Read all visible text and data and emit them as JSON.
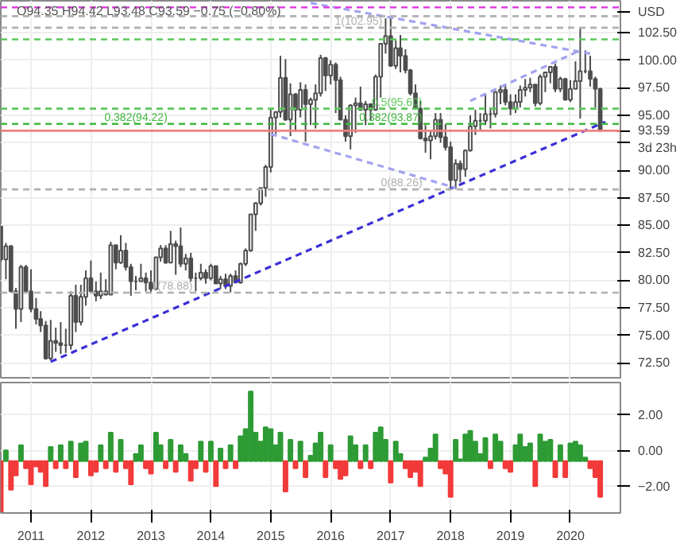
{
  "chart_data": [
    {
      "type": "candlestick",
      "color": "#4d4d4d",
      "ylabel": "USD",
      "tick_labels": "y",
      "grid": true,
      "x": [
        "2010-07",
        "2010-08",
        "2010-09",
        "2010-10",
        "2010-11",
        "2010-12",
        "2011-01",
        "2011-02",
        "2011-03",
        "2011-04",
        "2011-05",
        "2011-06",
        "2011-07",
        "2011-08",
        "2011-09",
        "2011-10",
        "2011-11",
        "2011-12",
        "2012-01",
        "2012-02",
        "2012-03",
        "2012-04",
        "2012-05",
        "2012-06",
        "2012-07",
        "2012-08",
        "2012-09",
        "2012-10",
        "2012-11",
        "2012-12",
        "2013-01",
        "2013-02",
        "2013-03",
        "2013-04",
        "2013-05",
        "2013-06",
        "2013-07",
        "2013-08",
        "2013-09",
        "2013-10",
        "2013-11",
        "2013-12",
        "2014-01",
        "2014-02",
        "2014-03",
        "2014-04",
        "2014-05",
        "2014-06",
        "2014-07",
        "2014-08",
        "2014-09",
        "2014-10",
        "2014-11",
        "2014-12",
        "2015-01",
        "2015-02",
        "2015-03",
        "2015-04",
        "2015-05",
        "2015-06",
        "2015-07",
        "2015-08",
        "2015-09",
        "2015-10",
        "2015-11",
        "2015-12",
        "2016-01",
        "2016-02",
        "2016-03",
        "2016-04",
        "2016-05",
        "2016-06",
        "2016-07",
        "2016-08",
        "2016-09",
        "2016-10",
        "2016-11",
        "2016-12",
        "2017-01",
        "2017-02",
        "2017-03",
        "2017-04",
        "2017-05",
        "2017-06",
        "2017-07",
        "2017-08",
        "2017-09",
        "2017-10",
        "2017-11",
        "2017-12",
        "2018-01",
        "2018-02",
        "2018-03",
        "2018-04",
        "2018-05",
        "2018-06",
        "2018-07",
        "2018-08",
        "2018-09",
        "2018-10",
        "2018-11",
        "2018-12",
        "2019-01",
        "2019-02",
        "2019-03",
        "2019-04",
        "2019-05",
        "2019-06",
        "2019-07",
        "2019-08",
        "2019-09",
        "2019-10",
        "2019-11",
        "2019-12",
        "2020-01",
        "2020-02",
        "2020-03",
        "2020-04",
        "2020-05",
        "2020-06",
        "2020-07"
      ],
      "ohlc": [
        [
          84.9,
          84.9,
          81.7,
          81.9
        ],
        [
          81.9,
          83.4,
          80.1,
          83.1
        ],
        [
          83.1,
          83.2,
          78.9,
          79.0
        ],
        [
          79.0,
          79.3,
          75.6,
          77.4
        ],
        [
          77.4,
          81.4,
          76.2,
          81.2
        ],
        [
          81.2,
          81.4,
          78.9,
          79.0
        ],
        [
          79.0,
          81.0,
          77.1,
          77.4
        ],
        [
          77.4,
          78.4,
          76.0,
          76.5
        ],
        [
          76.5,
          77.2,
          75.3,
          75.9
        ],
        [
          75.9,
          76.3,
          72.8,
          72.9
        ],
        [
          72.9,
          76.4,
          72.7,
          74.5
        ],
        [
          74.5,
          75.7,
          73.5,
          74.3
        ],
        [
          74.3,
          76.2,
          73.3,
          74.1
        ],
        [
          74.1,
          75.6,
          73.4,
          74.1
        ],
        [
          74.1,
          79.0,
          73.7,
          78.6
        ],
        [
          78.6,
          79.6,
          75.3,
          76.2
        ],
        [
          76.2,
          79.6,
          75.9,
          78.5
        ],
        [
          78.5,
          80.9,
          77.7,
          80.2
        ],
        [
          80.2,
          81.8,
          78.9,
          79.0
        ],
        [
          79.0,
          79.9,
          78.1,
          78.6
        ],
        [
          78.6,
          80.7,
          78.3,
          79.0
        ],
        [
          79.0,
          80.1,
          78.7,
          78.7
        ],
        [
          78.7,
          83.5,
          78.7,
          83.2
        ],
        [
          83.2,
          83.2,
          81.0,
          81.6
        ],
        [
          81.6,
          84.1,
          81.5,
          82.7
        ],
        [
          82.7,
          83.4,
          80.9,
          81.2
        ],
        [
          81.2,
          81.5,
          78.6,
          79.9
        ],
        [
          79.9,
          80.4,
          79.1,
          79.9
        ],
        [
          79.9,
          81.5,
          79.9,
          80.2
        ],
        [
          80.2,
          80.7,
          79.0,
          79.8
        ],
        [
          79.8,
          80.9,
          78.9,
          79.2
        ],
        [
          79.2,
          82.1,
          79.1,
          82.1
        ],
        [
          82.1,
          83.2,
          81.7,
          82.9
        ],
        [
          82.9,
          83.2,
          81.5,
          81.6
        ],
        [
          81.6,
          84.5,
          81.6,
          83.3
        ],
        [
          83.3,
          83.6,
          80.5,
          83.1
        ],
        [
          83.1,
          84.8,
          81.2,
          81.5
        ],
        [
          81.5,
          82.4,
          80.9,
          82.0
        ],
        [
          82.0,
          82.5,
          79.9,
          80.2
        ],
        [
          80.2,
          80.7,
          79.0,
          80.2
        ],
        [
          80.2,
          81.5,
          80.0,
          80.7
        ],
        [
          80.7,
          81.0,
          79.7,
          80.2
        ],
        [
          80.2,
          81.5,
          80.0,
          81.3
        ],
        [
          81.3,
          81.3,
          79.7,
          79.7
        ],
        [
          79.7,
          80.4,
          79.2,
          80.1
        ],
        [
          80.1,
          80.6,
          79.2,
          79.5
        ],
        [
          79.5,
          80.6,
          78.9,
          80.4
        ],
        [
          80.4,
          80.9,
          79.8,
          79.8
        ],
        [
          79.8,
          81.6,
          79.7,
          81.5
        ],
        [
          81.5,
          82.9,
          81.3,
          82.7
        ],
        [
          82.7,
          86.0,
          82.6,
          86.0
        ],
        [
          86.0,
          87.1,
          84.5,
          87.0
        ],
        [
          87.0,
          88.4,
          86.8,
          88.4
        ],
        [
          88.4,
          90.5,
          87.6,
          90.3
        ],
        [
          90.3,
          95.5,
          89.8,
          94.8
        ],
        [
          94.8,
          95.3,
          93.3,
          95.3
        ],
        [
          95.3,
          100.4,
          94.8,
          98.4
        ],
        [
          98.4,
          100.1,
          94.5,
          94.6
        ],
        [
          94.6,
          97.9,
          93.1,
          96.9
        ],
        [
          96.9,
          97.0,
          93.5,
          95.5
        ],
        [
          95.5,
          98.0,
          94.8,
          97.3
        ],
        [
          97.3,
          97.8,
          92.6,
          96.0
        ],
        [
          96.0,
          96.6,
          94.1,
          96.4
        ],
        [
          96.4,
          97.8,
          93.8,
          97.0
        ],
        [
          97.0,
          100.5,
          96.7,
          100.2
        ],
        [
          100.2,
          100.3,
          97.2,
          98.6
        ],
        [
          98.6,
          100.0,
          97.8,
          99.6
        ],
        [
          99.6,
          99.8,
          95.2,
          98.2
        ],
        [
          98.2,
          98.5,
          94.6,
          94.6
        ],
        [
          94.6,
          95.0,
          92.6,
          93.1
        ],
        [
          93.1,
          96.0,
          91.9,
          95.9
        ],
        [
          95.9,
          96.6,
          93.4,
          96.1
        ],
        [
          96.1,
          97.6,
          95.4,
          95.5
        ],
        [
          95.5,
          96.3,
          94.1,
          96.0
        ],
        [
          96.0,
          96.0,
          94.5,
          95.5
        ],
        [
          95.5,
          98.7,
          95.4,
          98.5
        ],
        [
          98.5,
          101.5,
          96.6,
          101.5
        ],
        [
          101.5,
          103.8,
          100.6,
          102.2
        ],
        [
          102.2,
          103.8,
          99.4,
          99.5
        ],
        [
          99.5,
          101.8,
          99.2,
          101.1
        ],
        [
          101.1,
          102.3,
          98.9,
          100.4
        ],
        [
          100.4,
          101.0,
          98.8,
          99.1
        ],
        [
          99.1,
          99.2,
          96.8,
          97.0
        ],
        [
          97.0,
          97.8,
          95.5,
          95.6
        ],
        [
          95.6,
          96.3,
          92.8,
          92.9
        ],
        [
          92.9,
          94.1,
          91.6,
          92.7
        ],
        [
          92.7,
          93.6,
          91.0,
          93.1
        ],
        [
          93.1,
          95.2,
          92.8,
          94.6
        ],
        [
          94.6,
          95.2,
          92.5,
          93.0
        ],
        [
          93.0,
          94.2,
          91.8,
          92.1
        ],
        [
          92.1,
          92.6,
          88.4,
          89.1
        ],
        [
          89.1,
          91.0,
          88.3,
          90.6
        ],
        [
          90.6,
          90.9,
          88.9,
          90.1
        ],
        [
          90.1,
          91.9,
          89.4,
          91.8
        ],
        [
          91.8,
          95.0,
          91.7,
          94.0
        ],
        [
          94.0,
          95.5,
          93.2,
          94.5
        ],
        [
          94.5,
          95.2,
          93.7,
          94.5
        ],
        [
          94.5,
          96.9,
          94.1,
          95.1
        ],
        [
          95.1,
          95.7,
          93.8,
          95.1
        ],
        [
          95.1,
          97.2,
          94.8,
          97.1
        ],
        [
          97.1,
          97.7,
          96.0,
          97.3
        ],
        [
          97.3,
          97.7,
          95.9,
          96.2
        ],
        [
          96.2,
          96.9,
          95.0,
          95.6
        ],
        [
          95.6,
          96.9,
          95.2,
          96.2
        ],
        [
          96.2,
          97.7,
          95.7,
          97.3
        ],
        [
          97.3,
          98.3,
          96.7,
          97.5
        ],
        [
          97.5,
          98.4,
          97.1,
          97.8
        ],
        [
          97.8,
          97.8,
          95.8,
          96.1
        ],
        [
          96.1,
          98.7,
          95.9,
          98.5
        ],
        [
          98.5,
          98.9,
          97.1,
          98.9
        ],
        [
          98.9,
          99.4,
          97.9,
          99.4
        ],
        [
          99.4,
          99.7,
          97.1,
          97.4
        ],
        [
          97.4,
          98.5,
          97.1,
          98.3
        ],
        [
          98.3,
          98.4,
          96.4,
          96.4
        ],
        [
          96.4,
          98.2,
          96.2,
          97.4
        ],
        [
          97.4,
          99.9,
          97.4,
          98.1
        ],
        [
          98.1,
          103.0,
          94.7,
          99.0
        ],
        [
          99.0,
          100.9,
          98.8,
          99.0
        ],
        [
          99.0,
          100.4,
          97.6,
          98.3
        ],
        [
          98.3,
          98.5,
          95.7,
          97.4
        ],
        [
          97.4,
          97.5,
          93.5,
          93.6
        ]
      ],
      "xlim": [
        "2010-07",
        "2020-11"
      ],
      "xticks": [
        "2011",
        "2012",
        "2013",
        "2014",
        "2015",
        "2016",
        "2017",
        "2018",
        "2019",
        "2020"
      ],
      "ylim": [
        71.0,
        105.4
      ],
      "yticks": [
        {
          "value": 72.5,
          "label": "72.50"
        },
        {
          "value": 75,
          "label": "75.00"
        },
        {
          "value": 77.5,
          "label": "77.50"
        },
        {
          "value": 80,
          "label": "80.00"
        },
        {
          "value": 82.5,
          "label": "82.50"
        },
        {
          "value": 85,
          "label": "85.00"
        },
        {
          "value": 87.5,
          "label": "87.50"
        },
        {
          "value": 90,
          "label": "90.00"
        },
        {
          "value": 92.5,
          "label": null
        },
        {
          "value": 95,
          "label": "95.00"
        },
        {
          "value": 97.5,
          "label": "97.50"
        },
        {
          "value": 100,
          "label": "100.00"
        },
        {
          "value": 102.5,
          "label": "102.50"
        }
      ],
      "series": [
        {
          "type": "line",
          "color": "#3b2fd6",
          "line_style": "dashed",
          "x": [
            "2011-05",
            "2020-08"
          ],
          "values": [
            72.6,
            94.4
          ]
        },
        {
          "type": "line",
          "color": "#a3a3f0",
          "line_style": "dashed",
          "x": [
            "2015-01",
            "2018-02"
          ],
          "values": [
            93.3,
            88.4
          ]
        },
        {
          "type": "line",
          "color": "#a3a3f0",
          "line_style": "dashed",
          "x": [
            "2015-09",
            "2020-05"
          ],
          "values": [
            105.2,
            100.6
          ]
        },
        {
          "type": "line",
          "color": "#a3a3f0",
          "line_style": "dashed",
          "x": [
            "2018-05",
            "2020-03"
          ],
          "values": [
            96.3,
            100.9
          ]
        }
      ],
      "ref_lines": [
        {
          "axis": "y",
          "value": 104.8,
          "color": "#e040e0",
          "line_style": "dashed"
        },
        {
          "axis": "y",
          "value": 104.0,
          "color": "#b0b0b0",
          "line_style": "dashed"
        },
        {
          "axis": "y",
          "value": 102.95,
          "color": "#b0b0b0",
          "line_style": "dashed"
        },
        {
          "axis": "y",
          "value": 101.9,
          "color": "#5cc85c",
          "line_style": "dashed"
        },
        {
          "axis": "y",
          "value": 95.6,
          "color": "#5cc85c",
          "line_style": "dashed"
        },
        {
          "axis": "y",
          "value": 94.22,
          "color": "#3fb83f",
          "line_style": "dashed"
        },
        {
          "axis": "y",
          "value": 93.59,
          "color": "#f08080",
          "line_style": "solid",
          "label": "93.59"
        },
        {
          "axis": "y",
          "value": 88.26,
          "color": "#b0b0b0",
          "line_style": "dashed"
        },
        {
          "axis": "y",
          "value": 78.88,
          "color": "#b0b0b0",
          "line_style": "dashed"
        }
      ],
      "annotations": [
        "O94.35 H94.42 L93.48 C93.59 −0.75 (−0.80%)",
        "3d 23h",
        {
          "text": "1(102.95)",
          "x": "2016-12",
          "y": 102.95
        },
        {
          "text": "0.5(95.60)",
          "x": "2017-08",
          "y": 95.6
        },
        {
          "text": "0.382(94.22)",
          "x": "2013-05",
          "y": 94.22
        },
        {
          "text": "0.382(93.87)",
          "x": "2017-08",
          "y": 94.22
        },
        {
          "text": "0(88.26)",
          "x": "2017-08",
          "y": 88.26
        },
        {
          "text": "1(78.88)",
          "x": "2013-10",
          "y": 78.88
        }
      ]
    },
    {
      "type": "bar",
      "grid": true,
      "x": [
        "2010-07",
        "2010-08",
        "2010-09",
        "2010-10",
        "2010-11",
        "2010-12",
        "2011-01",
        "2011-02",
        "2011-03",
        "2011-04",
        "2011-05",
        "2011-06",
        "2011-07",
        "2011-08",
        "2011-09",
        "2011-10",
        "2011-11",
        "2011-12",
        "2012-01",
        "2012-02",
        "2012-03",
        "2012-04",
        "2012-05",
        "2012-06",
        "2012-07",
        "2012-08",
        "2012-09",
        "2012-10",
        "2012-11",
        "2012-12",
        "2013-01",
        "2013-02",
        "2013-03",
        "2013-04",
        "2013-05",
        "2013-06",
        "2013-07",
        "2013-08",
        "2013-09",
        "2013-10",
        "2013-11",
        "2013-12",
        "2014-01",
        "2014-02",
        "2014-03",
        "2014-04",
        "2014-05",
        "2014-06",
        "2014-07",
        "2014-08",
        "2014-09",
        "2014-10",
        "2014-11",
        "2014-12",
        "2015-01",
        "2015-02",
        "2015-03",
        "2015-04",
        "2015-05",
        "2015-06",
        "2015-07",
        "2015-08",
        "2015-09",
        "2015-10",
        "2015-11",
        "2015-12",
        "2016-01",
        "2016-02",
        "2016-03",
        "2016-04",
        "2016-05",
        "2016-06",
        "2016-07",
        "2016-08",
        "2016-09",
        "2016-10",
        "2016-11",
        "2016-12",
        "2017-01",
        "2017-02",
        "2017-03",
        "2017-04",
        "2017-05",
        "2017-06",
        "2017-07",
        "2017-08",
        "2017-09",
        "2017-10",
        "2017-11",
        "2017-12",
        "2018-01",
        "2018-02",
        "2018-03",
        "2018-04",
        "2018-05",
        "2018-06",
        "2018-07",
        "2018-08",
        "2018-09",
        "2018-10",
        "2018-11",
        "2018-12",
        "2019-01",
        "2019-02",
        "2019-03",
        "2019-04",
        "2019-05",
        "2019-06",
        "2019-07",
        "2019-08",
        "2019-09",
        "2019-10",
        "2019-11",
        "2019-12",
        "2020-01",
        "2020-02",
        "2020-03",
        "2020-04",
        "2020-05",
        "2020-06",
        "2020-07"
      ],
      "values": [
        -2.9,
        0.6,
        -1.6,
        -0.8,
        0.9,
        -0.4,
        -1.3,
        -0.3,
        -0.6,
        -1.4,
        0.8,
        -0.4,
        0.9,
        -0.4,
        1.1,
        -0.9,
        1.0,
        1.1,
        -0.8,
        -0.6,
        0.9,
        -0.4,
        1.6,
        -0.6,
        1.2,
        -0.4,
        -1.3,
        0.4,
        0.9,
        -0.4,
        -0.7,
        1.6,
        0.9,
        -0.4,
        1.2,
        -0.6,
        0.9,
        0.4,
        -1.1,
        -0.4,
        1.1,
        -0.6,
        1.1,
        -1.4,
        0.7,
        -0.4,
        0.9,
        -0.4,
        1.4,
        1.8,
        3.9,
        1.6,
        1.1,
        1.9,
        1.8,
        0.9,
        1.6,
        -1.7,
        1.2,
        -0.4,
        1.1,
        -0.9,
        0.3,
        1.0,
        1.6,
        -0.9,
        0.9,
        -0.4,
        -1.0,
        -0.8,
        1.4,
        0.9,
        -0.4,
        0.9,
        -0.4,
        1.6,
        1.9,
        1.2,
        -1.2,
        1.1,
        0.4,
        -0.4,
        -0.9,
        -0.6,
        -1.4,
        0.2,
        0.7,
        1.5,
        -0.4,
        -0.7,
        -2.0,
        1.2,
        0.1,
        1.5,
        1.7,
        1.1,
        0.4,
        1.3,
        -0.4,
        1.5,
        1.1,
        -0.4,
        -0.6,
        0.9,
        1.5,
        0.8,
        1.0,
        -1.4,
        1.5,
        1.1,
        1.2,
        -0.9,
        0.9,
        -0.9,
        1.0,
        1.1,
        0.9,
        0.2,
        -0.4,
        -0.9,
        -2.0
      ],
      "base": [
        -0.6,
        -0.6,
        -0.6,
        -0.6,
        -0.6,
        -0.6,
        -0.6,
        -0.6,
        -0.6,
        -0.6,
        -0.6,
        -0.6,
        -0.6,
        -0.6,
        -0.6,
        -0.6,
        -0.6,
        -0.6,
        -0.6,
        -0.6,
        -0.6,
        -0.6,
        -0.6,
        -0.6,
        -0.6,
        -0.6,
        -0.6,
        -0.6,
        -0.6,
        -0.6,
        -0.6,
        -0.6,
        -0.6,
        -0.6,
        -0.6,
        -0.6,
        -0.6,
        -0.6,
        -0.6,
        -0.6,
        -0.6,
        -0.6,
        -0.6,
        -0.6,
        -0.6,
        -0.6,
        -0.6,
        -0.6,
        -0.6,
        -0.6,
        -0.6,
        -0.6,
        -0.6,
        -0.6,
        -0.6,
        -0.6,
        -0.6,
        -0.6,
        -0.6,
        -0.6,
        -0.6,
        -0.6,
        -0.6,
        -0.6,
        -0.6,
        -0.6,
        -0.6,
        -0.6,
        -0.6,
        -0.6,
        -0.6,
        -0.6,
        -0.6,
        -0.6,
        -0.6,
        -0.6,
        -0.6,
        -0.6,
        -0.6,
        -0.6,
        -0.6,
        -0.6,
        -0.6,
        -0.6,
        -0.6,
        -0.6,
        -0.6,
        -0.6,
        -0.6,
        -0.6,
        -0.6,
        -0.6,
        -0.6,
        -0.6,
        -0.6,
        -0.6,
        -0.6,
        -0.6,
        -0.6,
        -0.6,
        -0.6,
        -0.6,
        -0.6,
        -0.6,
        -0.6,
        -0.6,
        -0.6,
        -0.6,
        -0.6,
        -0.6,
        -0.6,
        -0.6,
        -0.6,
        -0.6,
        -0.6,
        -0.6,
        -0.6,
        -0.6,
        -0.6,
        -0.6,
        -0.6
      ],
      "colors": [
        "#f23a3a",
        "#2e9b35",
        "#f23a3a",
        "#f23a3a",
        "#2e9b35",
        "#f23a3a",
        "#f23a3a",
        "#f23a3a",
        "#f23a3a",
        "#f23a3a",
        "#2e9b35",
        "#f23a3a",
        "#2e9b35",
        "#f23a3a",
        "#2e9b35",
        "#f23a3a",
        "#2e9b35",
        "#2e9b35",
        "#f23a3a",
        "#f23a3a",
        "#2e9b35",
        "#f23a3a",
        "#2e9b35",
        "#f23a3a",
        "#2e9b35",
        "#f23a3a",
        "#f23a3a",
        "#2e9b35",
        "#2e9b35",
        "#f23a3a",
        "#f23a3a",
        "#2e9b35",
        "#2e9b35",
        "#f23a3a",
        "#2e9b35",
        "#f23a3a",
        "#2e9b35",
        "#2e9b35",
        "#f23a3a",
        "#f23a3a",
        "#2e9b35",
        "#f23a3a",
        "#2e9b35",
        "#f23a3a",
        "#2e9b35",
        "#f23a3a",
        "#2e9b35",
        "#f23a3a",
        "#2e9b35",
        "#2e9b35",
        "#2e9b35",
        "#2e9b35",
        "#2e9b35",
        "#2e9b35",
        "#2e9b35",
        "#2e9b35",
        "#2e9b35",
        "#f23a3a",
        "#2e9b35",
        "#f23a3a",
        "#2e9b35",
        "#f23a3a",
        "#2e9b35",
        "#2e9b35",
        "#2e9b35",
        "#f23a3a",
        "#2e9b35",
        "#f23a3a",
        "#f23a3a",
        "#f23a3a",
        "#2e9b35",
        "#2e9b35",
        "#f23a3a",
        "#2e9b35",
        "#f23a3a",
        "#2e9b35",
        "#2e9b35",
        "#2e9b35",
        "#f23a3a",
        "#2e9b35",
        "#2e9b35",
        "#f23a3a",
        "#f23a3a",
        "#f23a3a",
        "#f23a3a",
        "#2e9b35",
        "#2e9b35",
        "#2e9b35",
        "#f23a3a",
        "#f23a3a",
        "#f23a3a",
        "#2e9b35",
        "#2e9b35",
        "#2e9b35",
        "#2e9b35",
        "#2e9b35",
        "#2e9b35",
        "#2e9b35",
        "#f23a3a",
        "#2e9b35",
        "#2e9b35",
        "#f23a3a",
        "#f23a3a",
        "#2e9b35",
        "#2e9b35",
        "#2e9b35",
        "#2e9b35",
        "#f23a3a",
        "#2e9b35",
        "#2e9b35",
        "#2e9b35",
        "#f23a3a",
        "#2e9b35",
        "#f23a3a",
        "#2e9b35",
        "#2e9b35",
        "#2e9b35",
        "#2e9b35",
        "#f23a3a",
        "#f23a3a",
        "#f23a3a"
      ],
      "xlim": [
        "2010-07",
        "2020-11"
      ],
      "xticks": [
        "2011",
        "2012",
        "2013",
        "2014",
        "2015",
        "2016",
        "2017",
        "2018",
        "2019",
        "2020"
      ],
      "ylim": [
        -3.5,
        3.8
      ],
      "yticks": [
        {
          "value": -2,
          "label": "−2.00"
        },
        {
          "value": 0,
          "label": "0.00"
        },
        {
          "value": 2,
          "label": "2.00"
        }
      ]
    }
  ]
}
